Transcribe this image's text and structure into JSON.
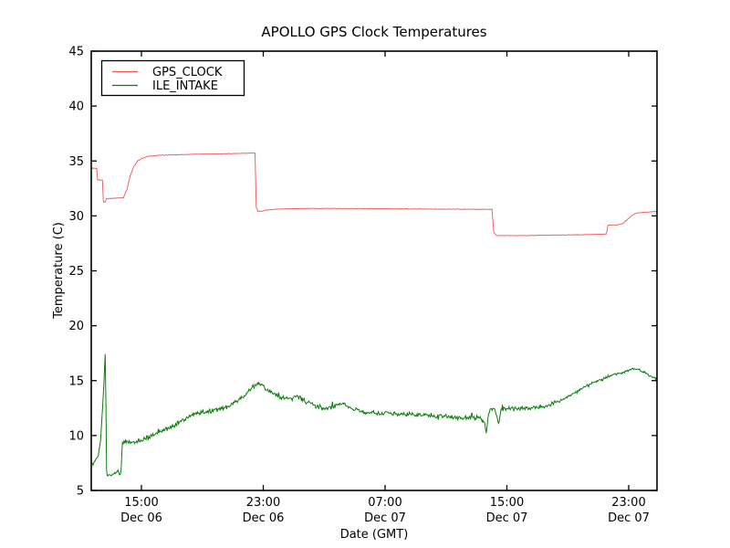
{
  "window": {
    "background": "#ffffff",
    "frame_color": "#000000"
  },
  "chart_data": {
    "type": "line",
    "title": "APOLLO GPS Clock Temperatures",
    "xlabel": "Date (GMT)",
    "ylabel": "Temperature (C)",
    "ylim": [
      5,
      45
    ],
    "xlim_hours": [
      11.704,
      48.858
    ],
    "grid": false,
    "yticks": [
      5,
      10,
      15,
      20,
      25,
      30,
      35,
      40,
      45
    ],
    "xticks": [
      {
        "hour": 15,
        "time": "15:00",
        "date": "Dec 06"
      },
      {
        "hour": 23,
        "time": "23:00",
        "date": "Dec 06"
      },
      {
        "hour": 31,
        "time": "07:00",
        "date": "Dec 07"
      },
      {
        "hour": 39,
        "time": "15:00",
        "date": "Dec 07"
      },
      {
        "hour": 47,
        "time": "23:00",
        "date": "Dec 07"
      }
    ],
    "legend": {
      "position": "upper left",
      "entries": [
        {
          "label": "GPS_CLOCK"
        },
        {
          "label": "ILE_INTAKE"
        }
      ]
    },
    "series": [
      {
        "name": "GPS_CLOCK",
        "color": "#f05454",
        "noise_amp": 0.03,
        "points": [
          [
            11.7,
            34.35
          ],
          [
            12.06,
            34.32
          ],
          [
            12.12,
            33.3
          ],
          [
            12.44,
            33.25
          ],
          [
            12.5,
            31.3
          ],
          [
            12.62,
            31.25
          ],
          [
            12.7,
            31.58
          ],
          [
            13.1,
            31.6
          ],
          [
            13.82,
            31.65
          ],
          [
            14.05,
            32.4
          ],
          [
            14.25,
            33.6
          ],
          [
            14.5,
            34.5
          ],
          [
            14.75,
            35.0
          ],
          [
            15.05,
            35.25
          ],
          [
            15.4,
            35.42
          ],
          [
            16.2,
            35.52
          ],
          [
            17.5,
            35.58
          ],
          [
            19.0,
            35.62
          ],
          [
            20.5,
            35.66
          ],
          [
            21.8,
            35.7
          ],
          [
            22.46,
            35.73
          ],
          [
            22.54,
            30.8
          ],
          [
            22.65,
            30.42
          ],
          [
            22.9,
            30.42
          ],
          [
            23.2,
            30.52
          ],
          [
            23.8,
            30.6
          ],
          [
            24.6,
            30.65
          ],
          [
            26.5,
            30.68
          ],
          [
            29.0,
            30.67
          ],
          [
            31.5,
            30.64
          ],
          [
            34.0,
            30.62
          ],
          [
            36.5,
            30.6
          ],
          [
            38.02,
            30.6
          ],
          [
            38.14,
            28.5
          ],
          [
            38.3,
            28.22
          ],
          [
            39.5,
            28.2
          ],
          [
            41.5,
            28.24
          ],
          [
            43.5,
            28.28
          ],
          [
            45.2,
            28.32
          ],
          [
            45.54,
            28.35
          ],
          [
            45.64,
            29.15
          ],
          [
            46.3,
            29.2
          ],
          [
            46.62,
            29.3
          ],
          [
            46.95,
            29.72
          ],
          [
            47.25,
            30.08
          ],
          [
            47.55,
            30.26
          ],
          [
            47.95,
            30.33
          ],
          [
            48.45,
            30.36
          ],
          [
            48.86,
            30.42
          ]
        ]
      },
      {
        "name": "ILE_INTAKE",
        "color": "#0a7d0a",
        "noise_amp": 0.25,
        "points": [
          [
            11.7,
            7.6
          ],
          [
            11.82,
            7.35
          ],
          [
            11.95,
            7.72
          ],
          [
            12.06,
            7.9
          ],
          [
            12.18,
            8.3
          ],
          [
            12.32,
            9.6
          ],
          [
            12.5,
            13.8
          ],
          [
            12.62,
            17.4
          ],
          [
            12.67,
            12.5
          ],
          [
            12.71,
            6.9
          ],
          [
            12.75,
            6.35
          ],
          [
            12.95,
            6.4
          ],
          [
            13.15,
            6.48
          ],
          [
            13.32,
            6.58
          ],
          [
            13.46,
            6.92
          ],
          [
            13.56,
            6.45
          ],
          [
            13.66,
            6.65
          ],
          [
            13.71,
            8.2
          ],
          [
            13.75,
            9.35
          ],
          [
            13.95,
            9.5
          ],
          [
            14.2,
            9.35
          ],
          [
            14.55,
            9.45
          ],
          [
            14.95,
            9.55
          ],
          [
            15.35,
            9.75
          ],
          [
            15.75,
            10.0
          ],
          [
            16.15,
            10.25
          ],
          [
            16.55,
            10.5
          ],
          [
            16.95,
            10.8
          ],
          [
            17.35,
            11.1
          ],
          [
            17.75,
            11.4
          ],
          [
            18.15,
            11.7
          ],
          [
            18.55,
            11.95
          ],
          [
            18.95,
            12.1
          ],
          [
            19.35,
            12.15
          ],
          [
            19.75,
            12.3
          ],
          [
            20.15,
            12.45
          ],
          [
            20.55,
            12.6
          ],
          [
            20.95,
            12.9
          ],
          [
            21.35,
            13.2
          ],
          [
            21.75,
            13.6
          ],
          [
            22.15,
            14.2
          ],
          [
            22.45,
            14.55
          ],
          [
            22.67,
            14.82
          ],
          [
            22.95,
            14.5
          ],
          [
            23.3,
            14.1
          ],
          [
            23.7,
            13.75
          ],
          [
            24.1,
            13.52
          ],
          [
            24.5,
            13.45
          ],
          [
            24.9,
            13.35
          ],
          [
            25.2,
            13.65
          ],
          [
            25.55,
            13.28
          ],
          [
            25.95,
            13.0
          ],
          [
            26.45,
            12.65
          ],
          [
            26.95,
            12.5
          ],
          [
            27.45,
            12.55
          ],
          [
            27.95,
            12.8
          ],
          [
            28.2,
            12.9
          ],
          [
            28.55,
            12.62
          ],
          [
            29.05,
            12.32
          ],
          [
            29.65,
            12.05
          ],
          [
            30.15,
            12.1
          ],
          [
            30.75,
            11.95
          ],
          [
            31.35,
            12.08
          ],
          [
            31.95,
            11.94
          ],
          [
            32.55,
            12.0
          ],
          [
            33.15,
            11.85
          ],
          [
            33.75,
            11.9
          ],
          [
            34.35,
            11.76
          ],
          [
            34.95,
            11.8
          ],
          [
            35.55,
            11.65
          ],
          [
            36.15,
            11.55
          ],
          [
            36.75,
            11.7
          ],
          [
            37.25,
            11.55
          ],
          [
            37.5,
            11.28
          ],
          [
            37.65,
            10.4
          ],
          [
            37.8,
            11.9
          ],
          [
            37.95,
            12.48
          ],
          [
            38.2,
            12.42
          ],
          [
            38.45,
            11.15
          ],
          [
            38.62,
            12.35
          ],
          [
            39.05,
            12.48
          ],
          [
            39.55,
            12.4
          ],
          [
            40.05,
            12.5
          ],
          [
            40.55,
            12.45
          ],
          [
            41.05,
            12.55
          ],
          [
            41.55,
            12.65
          ],
          [
            42.05,
            12.9
          ],
          [
            42.55,
            13.2
          ],
          [
            43.05,
            13.6
          ],
          [
            43.55,
            14.0
          ],
          [
            44.05,
            14.4
          ],
          [
            44.55,
            14.75
          ],
          [
            45.05,
            15.0
          ],
          [
            45.55,
            15.3
          ],
          [
            46.05,
            15.55
          ],
          [
            46.55,
            15.7
          ],
          [
            47.05,
            15.95
          ],
          [
            47.35,
            16.1
          ],
          [
            47.62,
            16.05
          ],
          [
            47.92,
            15.85
          ],
          [
            48.3,
            15.5
          ],
          [
            48.62,
            15.25
          ],
          [
            48.86,
            15.2
          ]
        ]
      }
    ]
  }
}
